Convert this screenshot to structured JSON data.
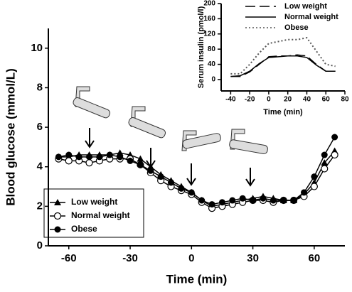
{
  "chart_data": [
    {
      "type": "line",
      "xlabel": "Time (min)",
      "ylabel": "Blood glucose (mmol/L)",
      "x": [
        -65,
        -60,
        -55,
        -50,
        -45,
        -40,
        -35,
        -30,
        -25,
        -20,
        -15,
        -10,
        -5,
        0,
        5,
        10,
        15,
        20,
        25,
        30,
        35,
        40,
        45,
        50,
        55,
        60,
        65,
        70
      ],
      "xlim": [
        -70,
        75
      ],
      "xticks": [
        -60,
        -30,
        0,
        30,
        60
      ],
      "ylim": [
        0,
        11
      ],
      "yticks": [
        0,
        2,
        4,
        6,
        8,
        10
      ],
      "legend": "lower left",
      "series": [
        {
          "name": "Low weight",
          "color": "#000000",
          "marker": "triangle",
          "values": [
            4.5,
            4.5,
            4.6,
            4.6,
            4.6,
            4.6,
            4.7,
            4.6,
            4.4,
            4.0,
            3.6,
            3.3,
            3.0,
            2.7,
            2.3,
            2.0,
            2.1,
            2.2,
            2.3,
            2.4,
            2.5,
            2.4,
            2.3,
            2.3,
            2.6,
            3.2,
            4.2,
            4.8
          ]
        },
        {
          "name": "Normal  weight",
          "color": "#000000",
          "marker": "open-circle",
          "values": [
            4.4,
            4.3,
            4.3,
            4.2,
            4.3,
            4.4,
            4.4,
            4.4,
            4.1,
            3.7,
            3.3,
            3.0,
            2.8,
            2.6,
            2.2,
            1.9,
            2.0,
            2.1,
            2.2,
            2.3,
            2.3,
            2.2,
            2.3,
            2.3,
            2.5,
            3.0,
            3.9,
            4.6
          ]
        },
        {
          "name": "Obese",
          "color": "#000000",
          "marker": "filled-circle",
          "values": [
            4.5,
            4.6,
            4.5,
            4.5,
            4.5,
            4.6,
            4.5,
            4.3,
            4.1,
            3.8,
            3.5,
            3.2,
            2.9,
            2.7,
            2.3,
            2.1,
            2.2,
            2.3,
            2.4,
            2.3,
            2.4,
            2.3,
            2.3,
            2.3,
            2.7,
            3.5,
            4.6,
            5.5
          ]
        }
      ]
    },
    {
      "type": "line",
      "xlabel": "Time (min)",
      "ylabel": "Serum insulin (pmol/l)",
      "x": [
        -40,
        -30,
        -20,
        -10,
        0,
        10,
        20,
        30,
        40,
        50,
        60,
        70
      ],
      "xlim": [
        -50,
        80
      ],
      "xticks": [
        -40,
        -20,
        0,
        20,
        40,
        60,
        80
      ],
      "ylim": [
        -30,
        200
      ],
      "yticks": [
        0,
        40,
        80,
        120,
        160,
        200
      ],
      "legend": "upper center",
      "series": [
        {
          "name": "Low weight",
          "color": "#000000",
          "dash": "dashed",
          "values": [
            8,
            8,
            20,
            40,
            60,
            62,
            62,
            65,
            62,
            40,
            22,
            22
          ]
        },
        {
          "name": "Normal weight",
          "color": "#000000",
          "dash": "solid",
          "values": [
            8,
            10,
            22,
            42,
            58,
            60,
            62,
            62,
            58,
            38,
            22,
            22
          ]
        },
        {
          "name": "Obese",
          "color": "#555555",
          "dash": "dotted",
          "values": [
            15,
            15,
            40,
            70,
            95,
            100,
            105,
            105,
            110,
            75,
            40,
            35
          ]
        }
      ]
    }
  ]
}
